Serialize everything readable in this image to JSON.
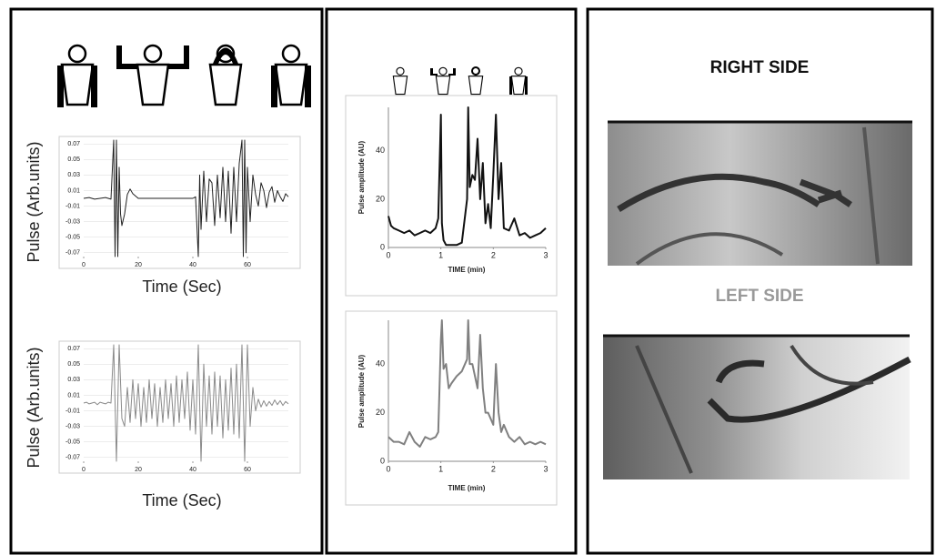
{
  "chart_data": [
    {
      "type": "line",
      "color": "#222222",
      "grid": true,
      "x_label": "Time (Sec)",
      "y_label": "Pulse (Arb.units)",
      "xlim": [
        0,
        75
      ],
      "ylim": [
        -0.075,
        0.075
      ],
      "xticks": [
        0,
        20,
        40,
        60
      ],
      "yticks": [
        0.07,
        0.05,
        0.03,
        0.01,
        -0.01,
        -0.03,
        -0.05,
        -0.07
      ],
      "x": [
        0,
        2,
        4,
        6,
        8,
        10,
        11,
        11.5,
        12,
        12.5,
        13,
        13.5,
        14,
        15,
        16,
        17,
        18,
        20,
        25,
        30,
        35,
        40,
        41,
        42,
        42.5,
        43,
        44,
        45,
        46,
        47,
        48,
        49,
        50,
        51,
        52,
        53,
        54,
        55,
        56,
        57,
        58,
        58.5,
        59,
        59.5,
        60,
        61,
        62,
        63,
        64,
        65,
        66,
        67,
        68,
        69,
        70,
        71,
        72,
        73,
        74,
        75
      ],
      "values": [
        0,
        0.001,
        -0.001,
        0,
        0.001,
        -0.001,
        0.075,
        -0.075,
        0.075,
        -0.075,
        0.04,
        -0.02,
        -0.035,
        -0.02,
        0.005,
        0.012,
        0.006,
        0,
        0,
        0,
        0,
        0,
        0.002,
        -0.075,
        0.03,
        -0.04,
        0.035,
        -0.03,
        0.025,
        0.02,
        -0.035,
        0.03,
        -0.025,
        0.04,
        -0.03,
        0.035,
        -0.045,
        0.04,
        -0.03,
        0.045,
        0.075,
        -0.075,
        0.075,
        -0.07,
        0.04,
        -0.03,
        0.03,
        0.005,
        -0.01,
        0.02,
        0.01,
        -0.012,
        0.008,
        0.015,
        -0.005,
        0.01,
        0.002,
        -0.004,
        0.006,
        0.002
      ]
    },
    {
      "type": "line",
      "color": "#8a8a8a",
      "grid": true,
      "x_label": "Time (Sec)",
      "y_label": "Pulse (Arb.units)",
      "xlim": [
        0,
        75
      ],
      "ylim": [
        -0.075,
        0.075
      ],
      "xticks": [
        0,
        20,
        40,
        60
      ],
      "yticks": [
        0.07,
        0.05,
        0.03,
        0.01,
        -0.01,
        -0.03,
        -0.05,
        -0.07
      ],
      "x": [
        0,
        1,
        2,
        3,
        4,
        5,
        6,
        7,
        8,
        9,
        10,
        11,
        12,
        13,
        14,
        15,
        16,
        17,
        18,
        19,
        20,
        21,
        22,
        23,
        24,
        25,
        26,
        27,
        28,
        29,
        30,
        31,
        32,
        33,
        34,
        35,
        36,
        37,
        38,
        39,
        40,
        41,
        42,
        43,
        44,
        45,
        46,
        47,
        48,
        49,
        50,
        51,
        52,
        53,
        54,
        55,
        56,
        57,
        58,
        59,
        60,
        61,
        62,
        63,
        64,
        65,
        66,
        67,
        68,
        69,
        70,
        71,
        72,
        73,
        74,
        75
      ],
      "values": [
        0,
        0.001,
        -0.001,
        0,
        0.001,
        -0.002,
        0.001,
        0,
        -0.001,
        0.001,
        0,
        0.075,
        -0.075,
        0.075,
        -0.02,
        -0.03,
        0.02,
        -0.025,
        0.03,
        -0.02,
        0.025,
        -0.03,
        0.02,
        -0.025,
        0.03,
        -0.02,
        0.025,
        -0.03,
        0.02,
        -0.025,
        0.03,
        -0.02,
        0.025,
        -0.03,
        0.035,
        -0.025,
        0.03,
        -0.02,
        0.04,
        -0.035,
        0.03,
        -0.04,
        0.075,
        -0.075,
        0.05,
        -0.03,
        0.035,
        -0.04,
        0.04,
        -0.03,
        0.035,
        -0.045,
        0.03,
        -0.035,
        0.045,
        -0.04,
        0.05,
        -0.045,
        0.075,
        -0.075,
        0.075,
        -0.03,
        0.02,
        -0.01,
        0.005,
        -0.005,
        0.003,
        -0.004,
        0.002,
        -0.003,
        0.004,
        -0.002,
        0.003,
        -0.003,
        0.002,
        -0.001
      ]
    },
    {
      "type": "line",
      "color": "#111111",
      "grid": false,
      "x_label": "TIME (min)",
      "y_label": "Pulse amplitude (AU)",
      "xlim": [
        0,
        3
      ],
      "ylim": [
        0,
        58
      ],
      "xticks": [
        0,
        1,
        2,
        3
      ],
      "yticks": [
        0,
        20,
        40
      ],
      "x": [
        0,
        0.05,
        0.1,
        0.2,
        0.3,
        0.4,
        0.5,
        0.6,
        0.7,
        0.8,
        0.9,
        0.95,
        1.0,
        1.02,
        1.05,
        1.1,
        1.2,
        1.3,
        1.4,
        1.5,
        1.52,
        1.55,
        1.6,
        1.65,
        1.7,
        1.75,
        1.8,
        1.85,
        1.9,
        1.95,
        2.0,
        2.05,
        2.1,
        2.15,
        2.2,
        2.3,
        2.4,
        2.5,
        2.6,
        2.7,
        2.8,
        2.9,
        3.0
      ],
      "values": [
        13,
        9,
        8,
        7,
        6,
        7,
        5,
        6,
        7,
        6,
        8,
        12,
        55,
        10,
        3,
        1,
        1,
        1,
        2,
        20,
        58,
        25,
        30,
        28,
        45,
        20,
        35,
        10,
        18,
        8,
        30,
        55,
        20,
        35,
        8,
        7,
        12,
        5,
        6,
        4,
        5,
        6,
        8
      ]
    },
    {
      "type": "line",
      "color": "#808080",
      "grid": false,
      "x_label": "TIME (min)",
      "y_label": "Pulse amplitude (AU)",
      "xlim": [
        0,
        3
      ],
      "ylim": [
        0,
        58
      ],
      "xticks": [
        0,
        1,
        2,
        3
      ],
      "yticks": [
        0,
        20,
        40
      ],
      "x": [
        0,
        0.1,
        0.2,
        0.3,
        0.4,
        0.5,
        0.6,
        0.7,
        0.8,
        0.9,
        0.95,
        1.0,
        1.02,
        1.05,
        1.1,
        1.15,
        1.2,
        1.3,
        1.4,
        1.5,
        1.52,
        1.55,
        1.6,
        1.7,
        1.75,
        1.8,
        1.85,
        1.9,
        2.0,
        2.05,
        2.1,
        2.15,
        2.2,
        2.3,
        2.4,
        2.5,
        2.6,
        2.7,
        2.8,
        2.9,
        3.0
      ],
      "values": [
        10,
        8,
        8,
        7,
        12,
        8,
        6,
        10,
        9,
        10,
        12,
        50,
        58,
        38,
        40,
        30,
        32,
        35,
        37,
        42,
        58,
        40,
        40,
        30,
        52,
        30,
        20,
        20,
        15,
        40,
        20,
        12,
        15,
        10,
        8,
        10,
        7,
        8,
        7,
        8,
        7
      ]
    }
  ],
  "images": {
    "right_label": "RIGHT SIDE",
    "left_label": "LEFT SIDE"
  }
}
